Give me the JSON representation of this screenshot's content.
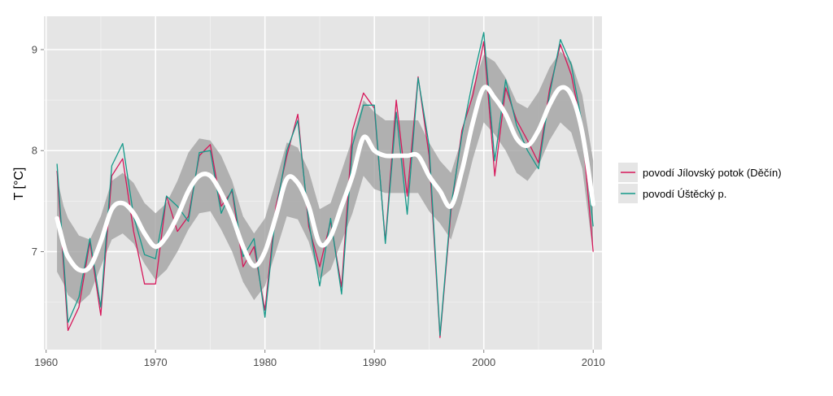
{
  "chart_data": {
    "type": "line",
    "title": "",
    "xlabel": "",
    "ylabel": "T [°C]",
    "xlim": [
      1959.8,
      2010.8
    ],
    "ylim": [
      6.03,
      9.33
    ],
    "x_ticks": [
      1960,
      1970,
      1980,
      1990,
      2000,
      2010
    ],
    "x_tick_labels": [
      "1960",
      "1970",
      "1980",
      "1990",
      "2000",
      "2010"
    ],
    "y_ticks": [
      7,
      8,
      9
    ],
    "y_tick_labels": [
      "7",
      "8",
      "9"
    ],
    "grid": true,
    "legend_position": "right",
    "x": [
      1961,
      1962,
      1963,
      1964,
      1965,
      1966,
      1967,
      1968,
      1969,
      1970,
      1971,
      1972,
      1973,
      1974,
      1975,
      1976,
      1977,
      1978,
      1979,
      1980,
      1981,
      1982,
      1983,
      1984,
      1985,
      1986,
      1987,
      1988,
      1989,
      1990,
      1991,
      1992,
      1993,
      1994,
      1995,
      1996,
      1997,
      1998,
      1999,
      2000,
      2001,
      2002,
      2003,
      2004,
      2005,
      2006,
      2007,
      2008,
      2009,
      2010
    ],
    "series": [
      {
        "name": "povodí Jílovský potok (Děčín)",
        "color": "#d6175a",
        "values": [
          7.8,
          6.22,
          6.45,
          7.1,
          6.37,
          7.75,
          7.92,
          7.2,
          6.68,
          6.68,
          7.55,
          7.2,
          7.35,
          7.95,
          8.06,
          7.45,
          7.6,
          6.85,
          7.05,
          6.42,
          7.45,
          7.95,
          8.36,
          7.25,
          6.85,
          7.3,
          6.65,
          8.2,
          8.57,
          8.42,
          7.1,
          8.5,
          7.55,
          8.73,
          7.95,
          6.15,
          7.4,
          8.2,
          8.55,
          9.08,
          7.75,
          8.62,
          8.3,
          8.1,
          7.88,
          8.6,
          9.05,
          8.75,
          8.2,
          7.0
        ]
      },
      {
        "name": "povodí Úštěcký p.",
        "color": "#15998a",
        "values": [
          7.87,
          6.3,
          6.55,
          7.13,
          6.45,
          7.85,
          8.07,
          7.35,
          6.97,
          6.93,
          7.55,
          7.45,
          7.3,
          7.98,
          8.0,
          7.38,
          7.62,
          6.95,
          7.13,
          6.35,
          7.4,
          8.0,
          8.3,
          7.3,
          6.66,
          7.33,
          6.58,
          8.05,
          8.45,
          8.45,
          7.08,
          8.38,
          7.37,
          8.72,
          8.05,
          6.17,
          7.45,
          8.15,
          8.7,
          9.17,
          7.9,
          8.7,
          8.25,
          8.0,
          7.82,
          8.55,
          9.1,
          8.85,
          8.25,
          7.25
        ]
      }
    ],
    "smooth": {
      "color": "#ffffff",
      "x": [
        1961,
        1961.6,
        1962,
        1963,
        1964,
        1965,
        1966,
        1967,
        1968,
        1969,
        1970,
        1971,
        1972,
        1973,
        1974,
        1975,
        1976,
        1977,
        1978,
        1979,
        1980,
        1981,
        1982,
        1983,
        1984,
        1985,
        1986,
        1987,
        1988,
        1989,
        1990,
        1991,
        1992,
        1993,
        1994,
        1995,
        1996,
        1997,
        1998,
        1999,
        2000,
        2001,
        2002,
        2003,
        2004,
        2005,
        2006,
        2007,
        2008,
        2009,
        2010
      ],
      "values": [
        7.33,
        7.07,
        6.95,
        6.82,
        6.85,
        7.1,
        7.42,
        7.48,
        7.38,
        7.18,
        7.05,
        7.15,
        7.35,
        7.6,
        7.75,
        7.75,
        7.58,
        7.35,
        7.05,
        6.86,
        7.0,
        7.35,
        7.72,
        7.68,
        7.45,
        7.08,
        7.15,
        7.45,
        7.75,
        8.13,
        8.0,
        7.95,
        7.95,
        7.95,
        7.95,
        7.75,
        7.6,
        7.45,
        7.8,
        8.28,
        8.62,
        8.52,
        8.36,
        8.12,
        8.05,
        8.2,
        8.45,
        8.62,
        8.55,
        8.18,
        7.47
      ],
      "upper": [
        7.73,
        7.45,
        7.33,
        7.16,
        7.12,
        7.35,
        7.7,
        7.78,
        7.68,
        7.48,
        7.38,
        7.48,
        7.7,
        7.98,
        8.12,
        8.1,
        7.95,
        7.7,
        7.35,
        7.18,
        7.33,
        7.7,
        8.08,
        8.03,
        7.8,
        7.42,
        7.48,
        7.8,
        8.12,
        8.5,
        8.38,
        8.3,
        8.3,
        8.3,
        8.3,
        8.08,
        7.9,
        7.78,
        8.12,
        8.62,
        8.95,
        8.88,
        8.72,
        8.48,
        8.42,
        8.58,
        8.82,
        8.98,
        8.88,
        8.55,
        7.9
      ],
      "lower": [
        6.8,
        6.68,
        6.57,
        6.48,
        6.58,
        6.85,
        7.12,
        7.18,
        7.08,
        6.88,
        6.72,
        6.82,
        7.0,
        7.22,
        7.38,
        7.4,
        7.22,
        7.0,
        6.7,
        6.52,
        6.66,
        7.0,
        7.35,
        7.32,
        7.1,
        6.73,
        6.82,
        7.1,
        7.38,
        7.75,
        7.62,
        7.58,
        7.58,
        7.58,
        7.58,
        7.4,
        7.28,
        7.12,
        7.48,
        7.92,
        8.28,
        8.16,
        8.0,
        7.78,
        7.7,
        7.85,
        8.1,
        8.28,
        8.18,
        7.82,
        6.98
      ]
    }
  }
}
